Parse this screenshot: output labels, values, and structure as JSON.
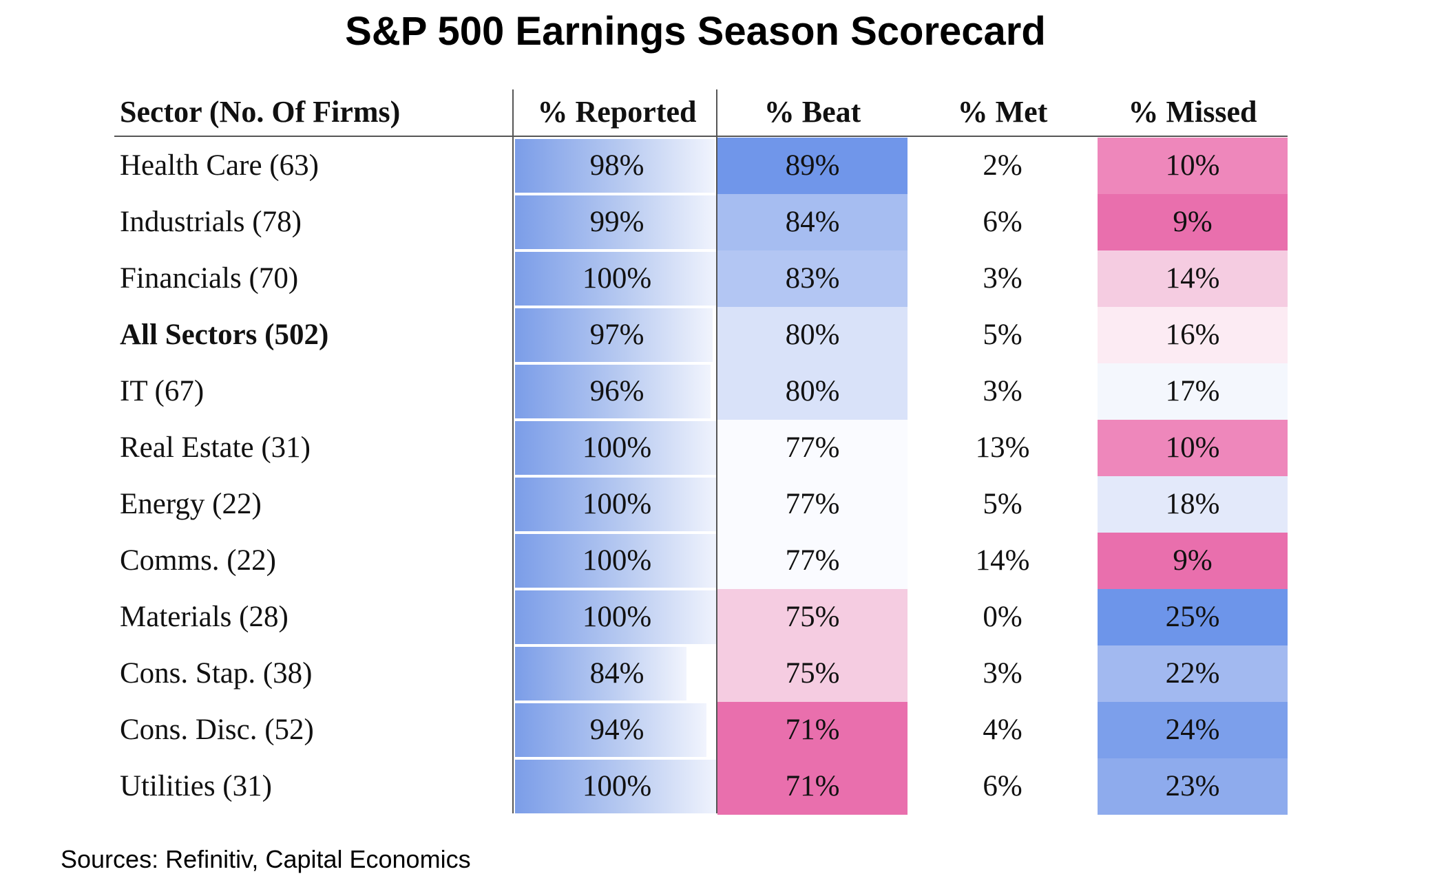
{
  "title": "S&P 500 Earnings Season Scorecard",
  "source": "Sources: Refinitiv, Capital Economics",
  "columns": [
    "Sector (No. Of Firms)",
    "% Reported",
    "% Beat",
    "% Met",
    "% Missed"
  ],
  "chart_data": {
    "type": "table",
    "title": "S&P 500 Earnings Season Scorecard",
    "columns": [
      "Sector (No. Of Firms)",
      "% Reported",
      "% Beat",
      "% Met",
      "% Missed"
    ],
    "rows": [
      {
        "sector": "Health Care (63)",
        "bold": false,
        "reported": "98%",
        "reported_value": 98,
        "beat": "89%",
        "beat_color": "#7096ea",
        "met": "2%",
        "missed": "10%",
        "missed_color": "#ee87bb"
      },
      {
        "sector": "Industrials (78)",
        "bold": false,
        "reported": "99%",
        "reported_value": 99,
        "beat": "84%",
        "beat_color": "#a6bdf1",
        "met": "6%",
        "missed": "9%",
        "missed_color": "#e96fad"
      },
      {
        "sector": "Financials (70)",
        "bold": false,
        "reported": "100%",
        "reported_value": 100,
        "beat": "83%",
        "beat_color": "#b3c6f3",
        "met": "3%",
        "missed": "14%",
        "missed_color": "#f5cce1"
      },
      {
        "sector": "All Sectors (502)",
        "bold": true,
        "reported": "97%",
        "reported_value": 97,
        "beat": "80%",
        "beat_color": "#d9e2f9",
        "met": "5%",
        "missed": "16%",
        "missed_color": "#fcebf3"
      },
      {
        "sector": "IT (67)",
        "bold": false,
        "reported": "96%",
        "reported_value": 96,
        "beat": "80%",
        "beat_color": "#d9e2f9",
        "met": "3%",
        "missed": "17%",
        "missed_color": "#f4f7fd"
      },
      {
        "sector": "Real Estate (31)",
        "bold": false,
        "reported": "100%",
        "reported_value": 100,
        "beat": "77%",
        "beat_color": "#fafbff",
        "met": "13%",
        "missed": "10%",
        "missed_color": "#ee87bb"
      },
      {
        "sector": "Energy (22)",
        "bold": false,
        "reported": "100%",
        "reported_value": 100,
        "beat": "77%",
        "beat_color": "#fafbff",
        "met": "5%",
        "missed": "18%",
        "missed_color": "#e3e9fa"
      },
      {
        "sector": "Comms. (22)",
        "bold": false,
        "reported": "100%",
        "reported_value": 100,
        "beat": "77%",
        "beat_color": "#fafbff",
        "met": "14%",
        "missed": "9%",
        "missed_color": "#e96fad"
      },
      {
        "sector": "Materials (28)",
        "bold": false,
        "reported": "100%",
        "reported_value": 100,
        "beat": "75%",
        "beat_color": "#f5cce1",
        "met": "0%",
        "missed": "25%",
        "missed_color": "#6d95ea"
      },
      {
        "sector": "Cons. Stap. (38)",
        "bold": false,
        "reported": "84%",
        "reported_value": 84,
        "beat": "75%",
        "beat_color": "#f5cce1",
        "met": "3%",
        "missed": "22%",
        "missed_color": "#a2b9f0"
      },
      {
        "sector": "Cons. Disc. (52)",
        "bold": false,
        "reported": "94%",
        "reported_value": 94,
        "beat": "71%",
        "beat_color": "#e96fad",
        "met": "4%",
        "missed": "24%",
        "missed_color": "#7c9feb"
      },
      {
        "sector": "Utilities (31)",
        "bold": false,
        "reported": "100%",
        "reported_value": 100,
        "beat": "71%",
        "beat_color": "#e96fad",
        "met": "6%",
        "missed": "23%",
        "missed_color": "#8eabed"
      }
    ]
  }
}
